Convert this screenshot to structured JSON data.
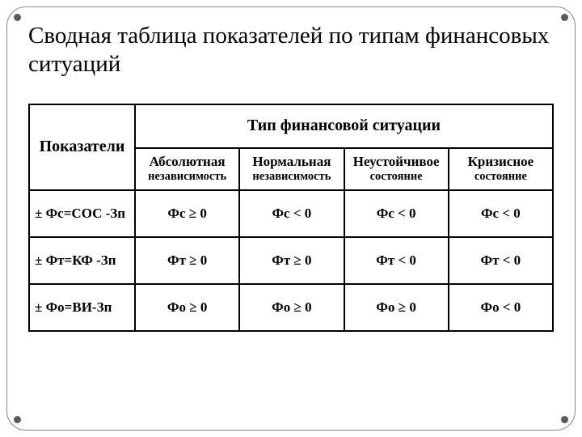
{
  "title": "Сводная таблица показателей по типам финансовых ситуаций",
  "table": {
    "type": "table",
    "label_head": "Показатели",
    "group_head": "Тип финансовой ситуации",
    "columns": [
      {
        "line1": "Абсолютная",
        "line2": "независимость"
      },
      {
        "line1": "Нормальная",
        "line2": "независимость"
      },
      {
        "line1": "Неустойчивое",
        "line2": "состояние"
      },
      {
        "line1": "Кризисное",
        "line2": "состояние"
      }
    ],
    "rows": [
      {
        "label": "± Фс=СОС -Зп",
        "cells": [
          "Фс ≥ 0",
          "Фс < 0",
          "Фс < 0",
          "Фс < 0"
        ]
      },
      {
        "label": "± Фт=КФ -Зп",
        "cells": [
          "Фт ≥ 0",
          "Фт ≥ 0",
          "Фт < 0",
          "Фт < 0"
        ]
      },
      {
        "label": "± Фо=ВИ-Зп",
        "cells": [
          "Фо ≥ 0",
          "Фо ≥ 0",
          "Фо ≥ 0",
          "Фо < 0"
        ]
      }
    ],
    "border_color": "#000000",
    "background_color": "#ffffff",
    "title_fontsize": 29,
    "header_fontsize": 20,
    "subheader_fontsize": 17,
    "cell_fontsize": 17,
    "font_color": "#000000"
  }
}
